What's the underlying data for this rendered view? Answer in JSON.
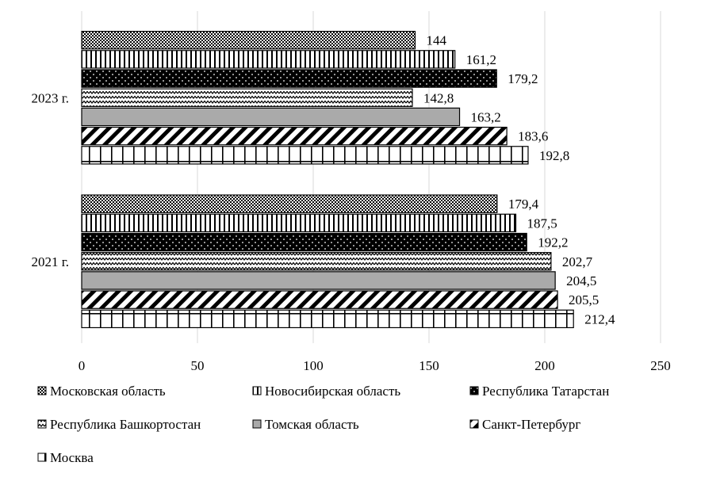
{
  "chart_data": {
    "type": "bar",
    "orientation": "horizontal",
    "categories": [
      "2023 г.",
      "2021 г."
    ],
    "series": [
      {
        "name": "Московская область",
        "values": [
          144,
          179.4
        ],
        "labels": [
          "144",
          "179,4"
        ],
        "pattern": "checker"
      },
      {
        "name": "Новосибирская область",
        "values": [
          161.2,
          187.5
        ],
        "labels": [
          "161,2",
          "187,5"
        ],
        "pattern": "vlines"
      },
      {
        "name": "Республика Татарстан",
        "values": [
          179.2,
          192.2
        ],
        "labels": [
          "179,2",
          "192,2"
        ],
        "pattern": "black-dots"
      },
      {
        "name": "Республика Башкортостан",
        "values": [
          142.8,
          202.7
        ],
        "labels": [
          "142,8",
          "202,7"
        ],
        "pattern": "zigzag"
      },
      {
        "name": "Томская область",
        "values": [
          163.2,
          204.5
        ],
        "labels": [
          "163,2",
          "204,5"
        ],
        "pattern": "solid-gray"
      },
      {
        "name": "Санкт-Петербург",
        "values": [
          183.6,
          205.5
        ],
        "labels": [
          "183,6",
          "205,5"
        ],
        "pattern": "diagonal"
      },
      {
        "name": "Москва",
        "values": [
          192.8,
          212.4
        ],
        "labels": [
          "192,8",
          "212,4"
        ],
        "pattern": "grid"
      }
    ],
    "xlim": [
      0,
      250
    ],
    "xticks": [
      "0",
      "50",
      "100",
      "150",
      "200",
      "250"
    ],
    "grid": "vertical",
    "legend_position": "bottom",
    "colors": {
      "fill": "#ffffff",
      "ink": "#000000",
      "gray": "#aaaaaa",
      "gridline": "#d9d9d9"
    }
  }
}
